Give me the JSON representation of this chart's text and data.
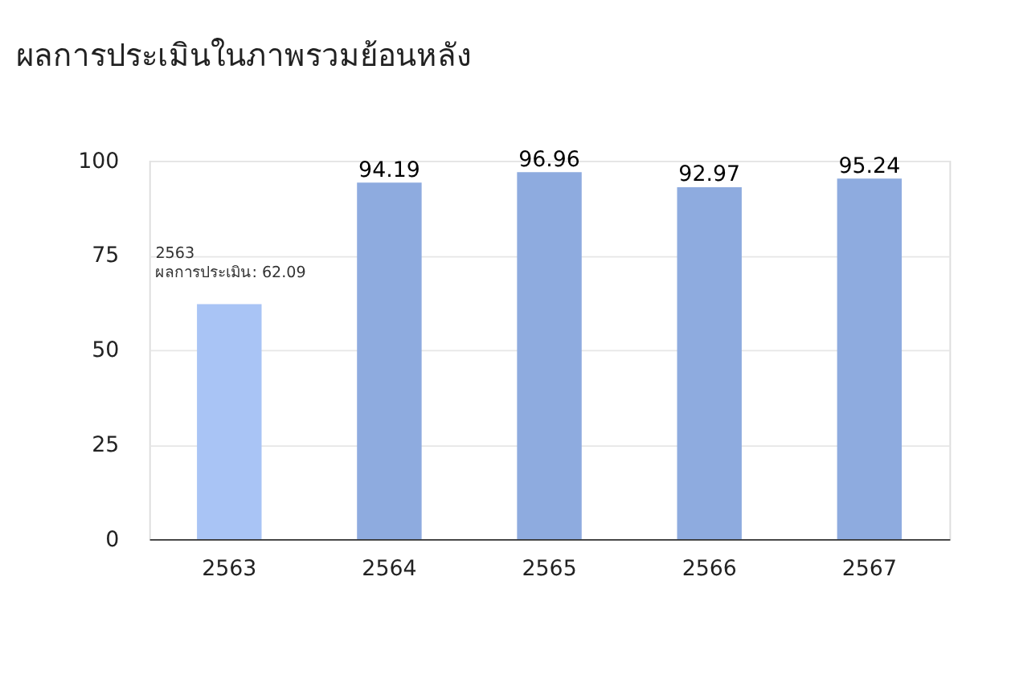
{
  "chart_data": {
    "type": "bar",
    "title": "ผลการประเมินในภาพรวมย้อนหลัง",
    "categories": [
      "2563",
      "2564",
      "2565",
      "2566",
      "2567"
    ],
    "values": [
      62.09,
      94.19,
      96.96,
      92.97,
      95.24
    ],
    "colors": [
      "#a9c4f5",
      "#8eabdf",
      "#8eabdf",
      "#8eabdf",
      "#8eabdf"
    ],
    "value_labels": [
      null,
      "94.19",
      "96.96",
      "92.97",
      "95.24"
    ],
    "ylim": [
      0,
      100
    ],
    "yticks": [
      0,
      25,
      50,
      75,
      100
    ],
    "grid": "y",
    "annotations": [
      "2563",
      "ผลการประเมิน: 62.09"
    ]
  }
}
